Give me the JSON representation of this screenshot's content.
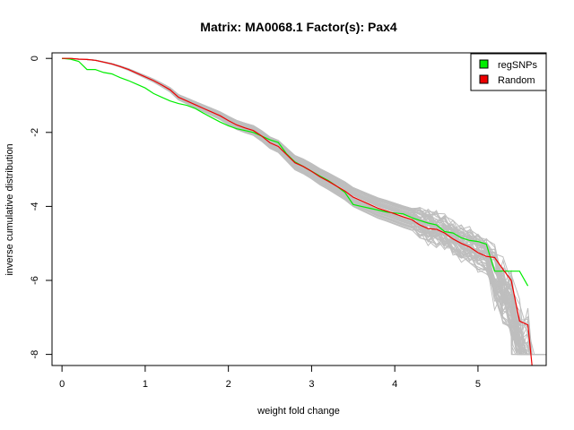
{
  "chart_data": {
    "type": "line",
    "title": "Matrix: MA0068.1 Factor(s): Pax4",
    "xlabel": "weight fold change",
    "ylabel": "inverse cumulative distribution",
    "xlim": [
      -0.12,
      5.82
    ],
    "ylim": [
      -8.3,
      0.15
    ],
    "xticks": [
      0,
      1,
      2,
      3,
      4,
      5
    ],
    "yticks": [
      0,
      -2,
      -4,
      -6,
      -8
    ],
    "grid": false,
    "legend_position": "top-right",
    "colors": {
      "regSNPs": "#00ee00",
      "Random": "#ee0000",
      "background_curves": "#bebebe"
    },
    "series": [
      {
        "name": "regSNPs",
        "color": "#00ee00",
        "x": [
          0,
          0.1,
          0.2,
          0.3,
          0.4,
          0.5,
          0.6,
          0.7,
          0.8,
          0.9,
          1.0,
          1.1,
          1.2,
          1.3,
          1.4,
          1.5,
          1.6,
          1.7,
          1.8,
          1.9,
          2.0,
          2.1,
          2.2,
          2.3,
          2.4,
          2.5,
          2.6,
          2.7,
          2.8,
          2.9,
          3.0,
          3.1,
          3.2,
          3.3,
          3.4,
          3.5,
          3.6,
          3.7,
          3.8,
          3.9,
          4.0,
          4.1,
          4.2,
          4.3,
          4.4,
          4.5,
          4.6,
          4.7,
          4.8,
          4.9,
          5.0,
          5.1,
          5.2,
          5.3,
          5.4,
          5.5,
          5.6
        ],
        "y": [
          0,
          -0.02,
          -0.08,
          -0.3,
          -0.3,
          -0.38,
          -0.42,
          -0.52,
          -0.6,
          -0.7,
          -0.8,
          -0.95,
          -1.05,
          -1.15,
          -1.22,
          -1.27,
          -1.35,
          -1.48,
          -1.6,
          -1.72,
          -1.82,
          -1.9,
          -1.95,
          -2.0,
          -2.1,
          -2.2,
          -2.27,
          -2.58,
          -2.8,
          -2.92,
          -3.05,
          -3.18,
          -3.3,
          -3.45,
          -3.62,
          -3.95,
          -4.0,
          -4.05,
          -4.1,
          -4.15,
          -4.18,
          -4.2,
          -4.3,
          -4.38,
          -4.45,
          -4.5,
          -4.68,
          -4.72,
          -4.85,
          -4.92,
          -4.95,
          -5.02,
          -5.75,
          -5.75,
          -5.75,
          -5.75,
          -6.15
        ]
      },
      {
        "name": "Random",
        "color": "#ee0000",
        "x": [
          0,
          0.1,
          0.2,
          0.3,
          0.4,
          0.5,
          0.6,
          0.7,
          0.8,
          0.9,
          1.0,
          1.1,
          1.2,
          1.3,
          1.4,
          1.5,
          1.6,
          1.7,
          1.8,
          1.9,
          2.0,
          2.1,
          2.2,
          2.3,
          2.4,
          2.5,
          2.6,
          2.7,
          2.8,
          2.9,
          3.0,
          3.1,
          3.2,
          3.3,
          3.4,
          3.5,
          3.6,
          3.7,
          3.8,
          3.9,
          4.0,
          4.1,
          4.2,
          4.3,
          4.4,
          4.5,
          4.6,
          4.7,
          4.8,
          4.9,
          5.0,
          5.1,
          5.2,
          5.3,
          5.4,
          5.5,
          5.6,
          5.65
        ],
        "y": [
          0,
          0,
          -0.02,
          -0.03,
          -0.05,
          -0.1,
          -0.15,
          -0.22,
          -0.3,
          -0.4,
          -0.5,
          -0.6,
          -0.72,
          -0.85,
          -1.05,
          -1.15,
          -1.25,
          -1.35,
          -1.45,
          -1.55,
          -1.68,
          -1.8,
          -1.88,
          -1.95,
          -2.1,
          -2.28,
          -2.38,
          -2.6,
          -2.82,
          -2.92,
          -3.05,
          -3.2,
          -3.32,
          -3.45,
          -3.58,
          -3.75,
          -3.85,
          -3.95,
          -4.05,
          -4.12,
          -4.2,
          -4.28,
          -4.35,
          -4.5,
          -4.6,
          -4.62,
          -4.72,
          -4.88,
          -5.0,
          -5.1,
          -5.25,
          -5.35,
          -5.38,
          -5.7,
          -6.0,
          -7.1,
          -7.2,
          -8.3
        ]
      }
    ]
  },
  "legend": {
    "entries": [
      {
        "label": "regSNPs",
        "color": "#00ee00"
      },
      {
        "label": "Random",
        "color": "#ee0000"
      }
    ]
  }
}
